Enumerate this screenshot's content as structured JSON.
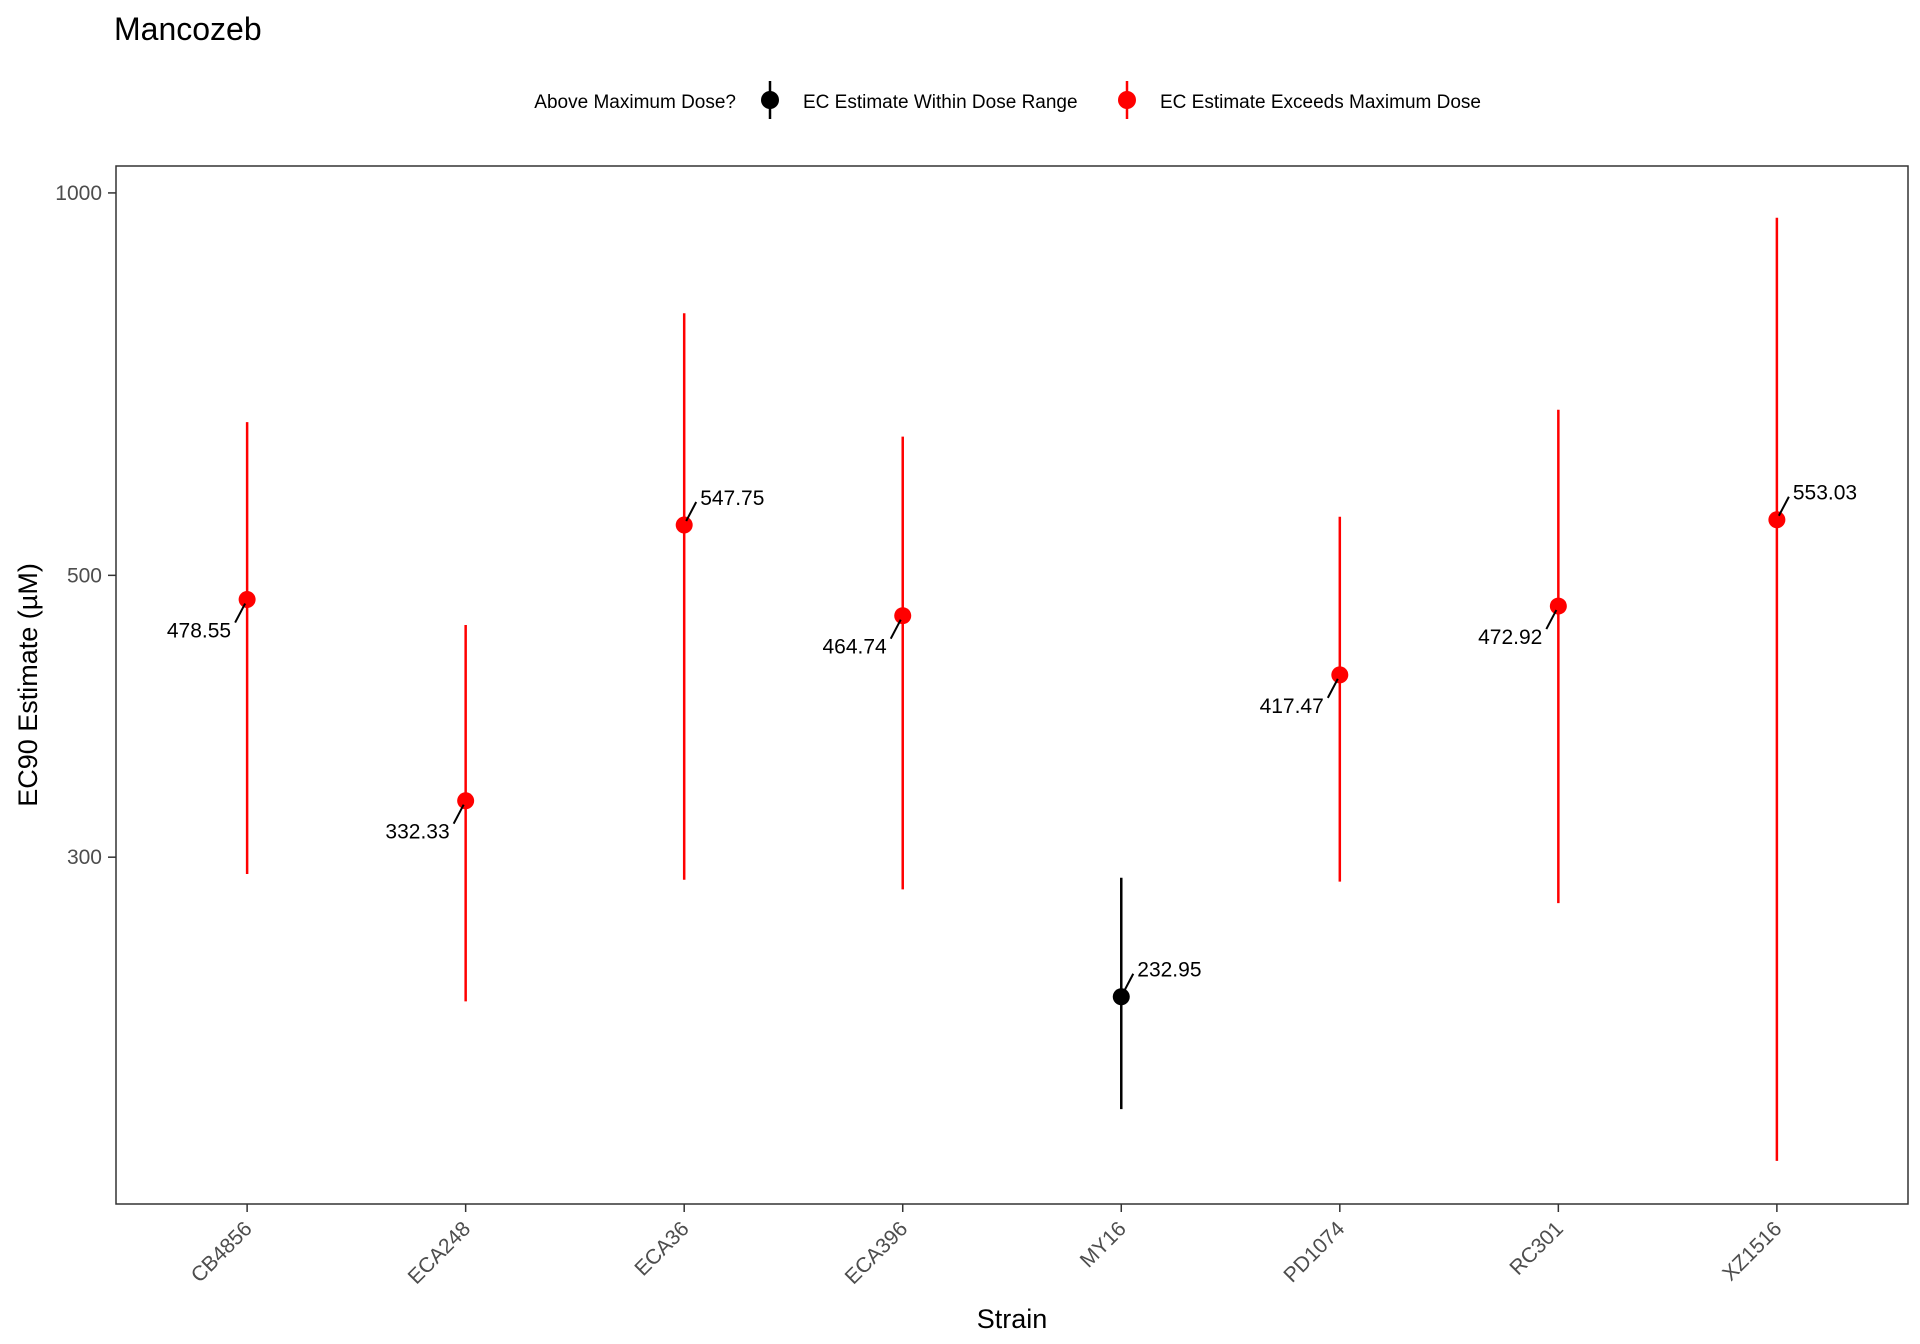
{
  "chart_data": {
    "type": "scatter",
    "title": "Mancozeb",
    "xlabel": "Strain",
    "ylabel": "EC90 Estimate (µM)",
    "yscale": "log",
    "ylim": [
      160,
      1050
    ],
    "yticks": [
      300,
      500,
      1000
    ],
    "ytick_labels": [
      "300",
      "500",
      "1000"
    ],
    "grid": false,
    "legend": {
      "title": "Above Maximum Dose?",
      "position": "top",
      "entries": [
        {
          "label": "EC Estimate Within Dose Range",
          "color": "#000000"
        },
        {
          "label": "EC Estimate Exceeds Maximum Dose",
          "color": "#ff0000"
        }
      ]
    },
    "categories": [
      "CB4856",
      "ECA248",
      "ECA36",
      "ECA396",
      "MY16",
      "PD1074",
      "RC301",
      "XZ1516"
    ],
    "points": [
      {
        "strain": "CB4856",
        "estimate": 478.55,
        "lower": 291,
        "upper": 660,
        "label": "478.55",
        "label_side": "left",
        "exceeds": true
      },
      {
        "strain": "ECA248",
        "estimate": 332.33,
        "lower": 231,
        "upper": 457,
        "label": "332.33",
        "label_side": "left",
        "exceeds": true
      },
      {
        "strain": "ECA36",
        "estimate": 547.75,
        "lower": 288,
        "upper": 804,
        "label": "547.75",
        "label_side": "right",
        "exceeds": true
      },
      {
        "strain": "ECA396",
        "estimate": 464.74,
        "lower": 283,
        "upper": 643,
        "label": "464.74",
        "label_side": "left",
        "exceeds": true
      },
      {
        "strain": "MY16",
        "estimate": 232.95,
        "lower": 190,
        "upper": 289,
        "label": "232.95",
        "label_side": "right",
        "exceeds": false
      },
      {
        "strain": "PD1074",
        "estimate": 417.47,
        "lower": 287,
        "upper": 556,
        "label": "417.47",
        "label_side": "left",
        "exceeds": true
      },
      {
        "strain": "RC301",
        "estimate": 472.92,
        "lower": 276,
        "upper": 675,
        "label": "472.92",
        "label_side": "left",
        "exceeds": true
      },
      {
        "strain": "XZ1516",
        "estimate": 553.03,
        "lower": 173,
        "upper": 956,
        "label": "553.03",
        "label_side": "right",
        "exceeds": true
      }
    ]
  }
}
